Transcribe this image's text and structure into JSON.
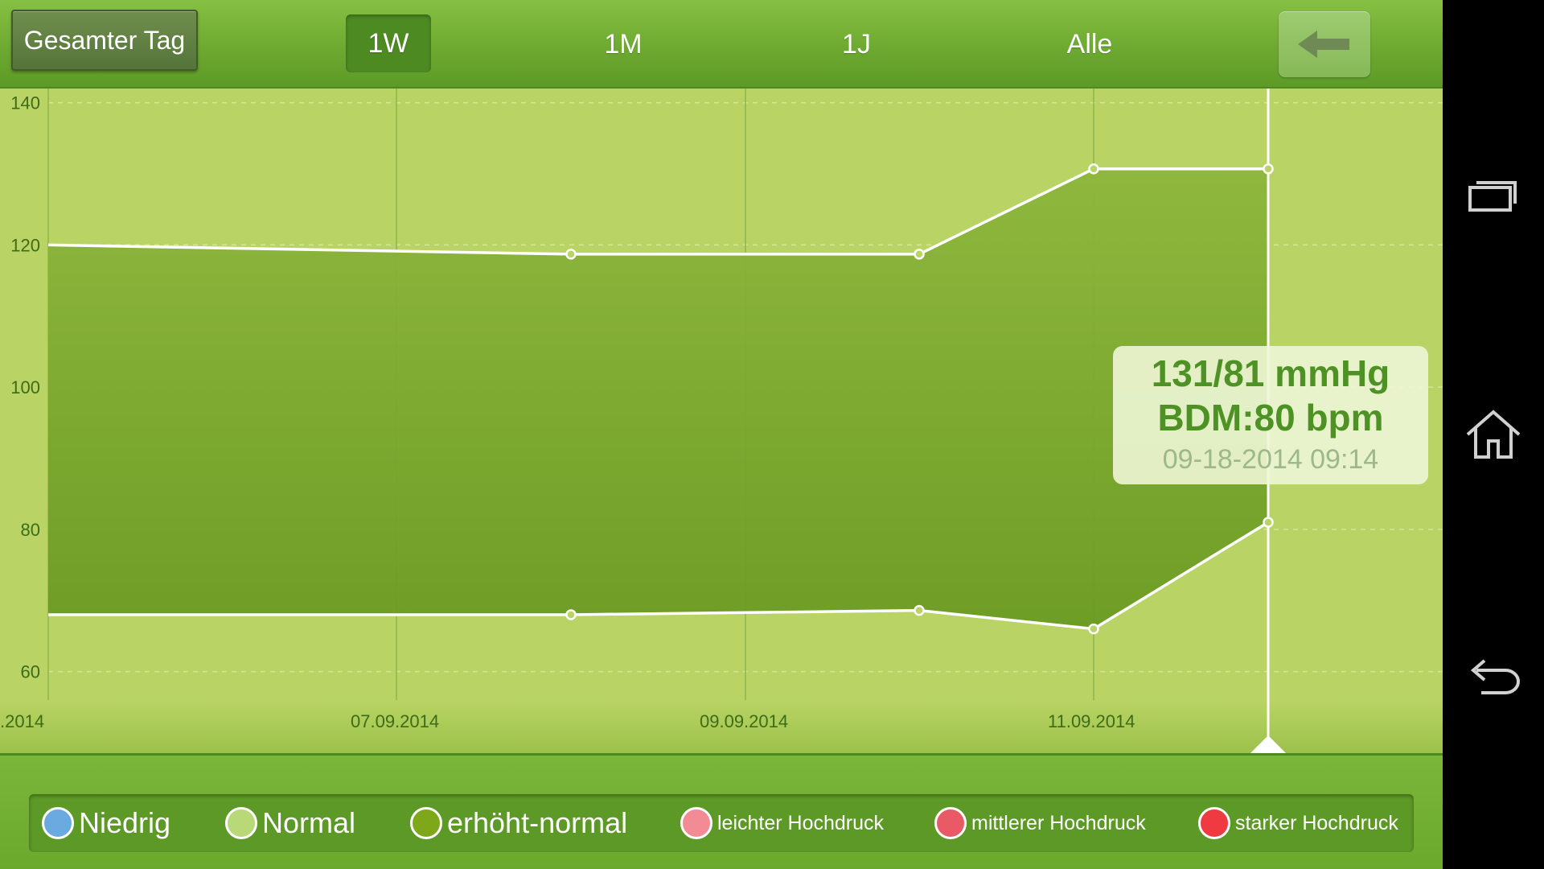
{
  "toolbar": {
    "day_label": "Gesamter Tag",
    "range_buttons": [
      "1W",
      "1M",
      "1J",
      "Alle"
    ],
    "selected_range": "1W",
    "back_icon": "back-arrow-icon"
  },
  "chart_data": {
    "type": "area",
    "x_tick_labels": [
      ".2014",
      "07.09.2014",
      "09.09.2014",
      "11.09.2014"
    ],
    "y_tick_labels": [
      "140",
      "120",
      "100",
      "80",
      "60"
    ],
    "ylim": [
      56,
      142
    ],
    "series": [
      {
        "values": [
          120,
          118.7,
          118.7,
          130.7,
          130.7
        ]
      },
      {
        "values": [
          68,
          68,
          68.6,
          66,
          81
        ]
      }
    ],
    "grid": true,
    "fill_color": "#6f9f25",
    "line_color": "#ffffff"
  },
  "tooltip": {
    "value": "131/81 mmHg",
    "pulse": "BDM:80 bpm",
    "time": "09-18-2014 09:14"
  },
  "legend": [
    {
      "label": "Niedrig",
      "color": "#6aaae0"
    },
    {
      "label": "Normal",
      "color": "#b9d878"
    },
    {
      "label": "erhöht-normal",
      "color": "#7ea81a"
    },
    {
      "label": "leichter Hochdruck",
      "color": "#f28b93"
    },
    {
      "label": "mittlerer Hochdruck",
      "color": "#ea5a66"
    },
    {
      "label": "starker Hochdruck",
      "color": "#ee3a40"
    }
  ],
  "navbar": {
    "icons": [
      "recent-apps-icon",
      "home-icon",
      "back-icon"
    ]
  }
}
